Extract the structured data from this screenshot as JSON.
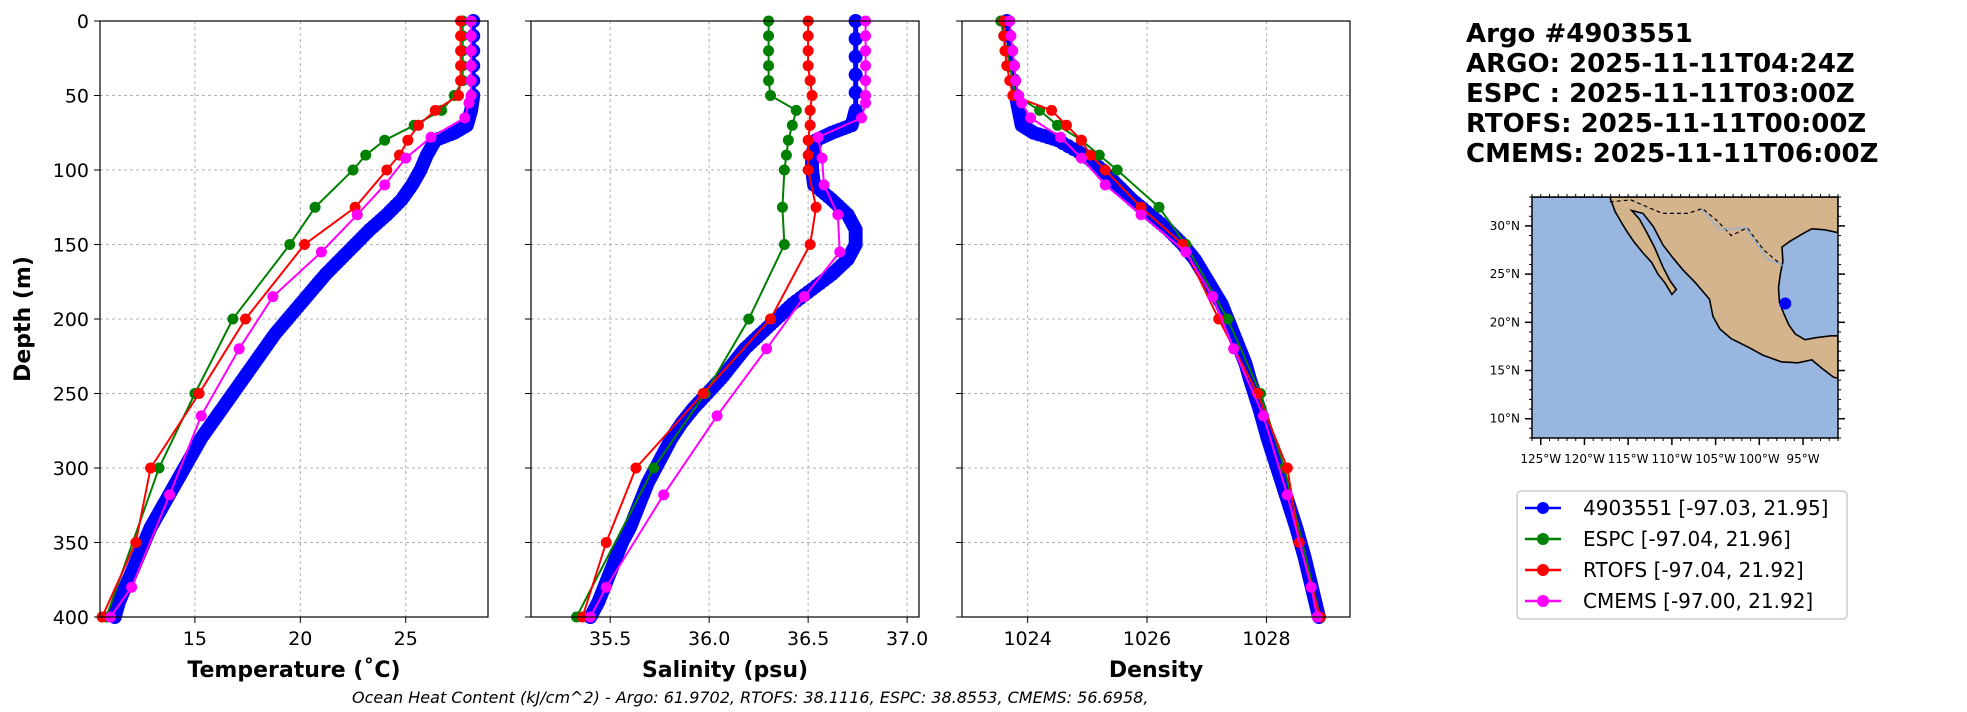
{
  "title_lines": [
    "Argo #4903551",
    "ARGO: 2025-11-11T04:24Z",
    "ESPC : 2025-11-11T03:00Z",
    "RTOFS: 2025-11-11T00:00Z",
    "CMEMS: 2025-11-11T06:00Z"
  ],
  "footer": "Ocean Heat Content (kJ/cm^2) - Argo: 61.9702,  RTOFS: 38.1116,  ESPC: 38.8553,  CMEMS: 56.6958,",
  "colors": {
    "argo": "#0000ff",
    "espc": "#008000",
    "rtofs": "#ff0000",
    "cmems": "#ff00ff"
  },
  "legend": [
    {
      "label": "4903551 [-97.03, 21.95]",
      "color": "#0000ff"
    },
    {
      "label": "ESPC [-97.04, 21.96]",
      "color": "#008000"
    },
    {
      "label": "RTOFS [-97.04, 21.92]",
      "color": "#ff0000"
    },
    {
      "label": "CMEMS [-97.00, 21.92]",
      "color": "#ff00ff"
    }
  ],
  "map": {
    "lat_ticks": [
      "30°N",
      "25°N",
      "20°N",
      "15°N",
      "10°N"
    ],
    "lat_values": [
      30,
      25,
      20,
      15,
      10
    ],
    "lon_ticks": [
      "125°W",
      "120°W",
      "115°W",
      "110°W",
      "105°W",
      "100°W",
      "95°W"
    ],
    "lon_values": [
      -125,
      -120,
      -115,
      -110,
      -105,
      -100,
      -95
    ],
    "extent": {
      "lon": [
        -126,
        -91
      ],
      "lat": [
        8,
        33
      ]
    },
    "float_position": {
      "lon": -97.03,
      "lat": 21.95
    },
    "ocean_color": "#98b6e0",
    "land_color": "#d3b48c"
  },
  "chart_data": [
    {
      "type": "line",
      "xlabel": "Temperature (˚C)",
      "ylabel": "Depth (m)",
      "xlim": [
        10.5,
        28.9
      ],
      "ylim": [
        400,
        0
      ],
      "xticks": [
        15,
        20,
        25
      ],
      "yticks": [
        0,
        50,
        100,
        150,
        200,
        250,
        300,
        350,
        400
      ],
      "grid": true,
      "series": [
        {
          "name": "ARGO",
          "color": "#0000ff",
          "dense": true,
          "depth": [
            0,
            50,
            60,
            70,
            75,
            80,
            90,
            100,
            110,
            120,
            130,
            140,
            150,
            160,
            170,
            180,
            190,
            200,
            210,
            220,
            230,
            240,
            250,
            260,
            270,
            280,
            290,
            300,
            310,
            320,
            330,
            340,
            350,
            360,
            370,
            380,
            390,
            400
          ],
          "values": [
            28.2,
            28.2,
            28.1,
            27.9,
            27.3,
            26.4,
            26.0,
            25.7,
            25.3,
            24.8,
            24.1,
            23.3,
            22.6,
            21.9,
            21.2,
            20.6,
            20.0,
            19.4,
            18.8,
            18.3,
            17.8,
            17.3,
            16.8,
            16.3,
            15.8,
            15.3,
            14.9,
            14.5,
            14.1,
            13.7,
            13.3,
            12.9,
            12.6,
            12.3,
            12.0,
            11.7,
            11.4,
            11.2
          ]
        },
        {
          "name": "ESPC",
          "color": "#008000",
          "depth": [
            0,
            10,
            20,
            30,
            40,
            50,
            60,
            70,
            80,
            90,
            100,
            125,
            150,
            200,
            250,
            300,
            400
          ],
          "values": [
            27.7,
            27.7,
            27.7,
            27.7,
            27.7,
            27.3,
            26.7,
            25.4,
            24.0,
            23.1,
            22.5,
            20.7,
            19.5,
            16.8,
            15.0,
            13.3,
            10.8
          ]
        },
        {
          "name": "RTOFS",
          "color": "#ff0000",
          "depth": [
            0,
            10,
            20,
            30,
            40,
            50,
            60,
            70,
            80,
            90,
            100,
            125,
            150,
            200,
            250,
            300,
            350,
            400
          ],
          "values": [
            27.6,
            27.6,
            27.6,
            27.6,
            27.6,
            27.5,
            26.4,
            25.6,
            25.1,
            24.7,
            24.1,
            22.6,
            20.2,
            17.4,
            15.2,
            12.9,
            12.2,
            10.6
          ]
        },
        {
          "name": "CMEMS",
          "color": "#ff00ff",
          "depth": [
            0,
            10,
            20,
            30,
            40,
            50,
            55,
            65,
            78,
            92,
            110,
            130,
            155,
            185,
            220,
            265,
            318,
            380,
            400
          ],
          "values": [
            28.1,
            28.1,
            28.1,
            28.1,
            28.1,
            28.1,
            28.0,
            27.8,
            26.2,
            25.0,
            24.0,
            22.7,
            21.0,
            18.7,
            17.1,
            15.3,
            13.8,
            12.0,
            11.0
          ]
        }
      ]
    },
    {
      "type": "line",
      "xlabel": "Salinity (psu)",
      "xlim": [
        35.1,
        37.06
      ],
      "ylim": [
        400,
        0
      ],
      "xticks": [
        35.5,
        36.0,
        36.5,
        37.0
      ],
      "xticklabels": [
        "35.5",
        "36.0",
        "36.5",
        "37.0"
      ],
      "grid": true,
      "series": [
        {
          "name": "ARGO",
          "color": "#0000ff",
          "dense": true,
          "depth": [
            0,
            60,
            70,
            75,
            80,
            90,
            100,
            110,
            120,
            130,
            140,
            150,
            160,
            170,
            180,
            190,
            200,
            210,
            220,
            230,
            240,
            250,
            260,
            270,
            280,
            290,
            300,
            310,
            320,
            330,
            340,
            350,
            360,
            370,
            380,
            390,
            400
          ],
          "values": [
            36.74,
            36.74,
            36.72,
            36.62,
            36.54,
            36.52,
            36.52,
            36.53,
            36.62,
            36.7,
            36.74,
            36.74,
            36.7,
            36.62,
            36.52,
            36.42,
            36.34,
            36.26,
            36.18,
            36.12,
            36.06,
            35.99,
            35.92,
            35.86,
            35.81,
            35.77,
            35.73,
            35.69,
            35.66,
            35.63,
            35.6,
            35.56,
            35.53,
            35.5,
            35.47,
            35.44,
            35.4
          ]
        },
        {
          "name": "ESPC",
          "color": "#008000",
          "depth": [
            0,
            10,
            20,
            30,
            40,
            50,
            60,
            70,
            80,
            90,
            100,
            125,
            150,
            200,
            250,
            300,
            400
          ],
          "values": [
            36.3,
            36.3,
            36.3,
            36.3,
            36.3,
            36.31,
            36.44,
            36.42,
            36.4,
            36.39,
            36.38,
            36.37,
            36.38,
            36.2,
            35.98,
            35.72,
            35.33
          ]
        },
        {
          "name": "RTOFS",
          "color": "#ff0000",
          "depth": [
            0,
            10,
            20,
            30,
            40,
            50,
            60,
            70,
            80,
            90,
            100,
            125,
            150,
            200,
            250,
            300,
            350,
            400
          ],
          "values": [
            36.5,
            36.5,
            36.5,
            36.5,
            36.51,
            36.52,
            36.51,
            36.51,
            36.5,
            36.5,
            36.5,
            36.54,
            36.51,
            36.31,
            35.97,
            35.63,
            35.48,
            35.36
          ]
        },
        {
          "name": "CMEMS",
          "color": "#ff00ff",
          "depth": [
            0,
            10,
            20,
            30,
            40,
            50,
            55,
            65,
            78,
            92,
            110,
            130,
            155,
            185,
            220,
            265,
            318,
            380,
            400
          ],
          "values": [
            36.79,
            36.79,
            36.79,
            36.79,
            36.79,
            36.79,
            36.79,
            36.77,
            36.55,
            36.57,
            36.58,
            36.65,
            36.66,
            36.48,
            36.29,
            36.04,
            35.77,
            35.48,
            35.4
          ]
        }
      ]
    },
    {
      "type": "line",
      "xlabel": "Density",
      "xlim": [
        1022.9,
        1029.4
      ],
      "ylim": [
        400,
        0
      ],
      "xticks": [
        1024,
        1026,
        1028
      ],
      "grid": true,
      "series": [
        {
          "name": "ARGO",
          "color": "#0000ff",
          "dense": true,
          "depth": [
            0,
            50,
            60,
            70,
            75,
            80,
            90,
            100,
            110,
            120,
            130,
            140,
            150,
            160,
            170,
            180,
            190,
            200,
            210,
            220,
            230,
            240,
            250,
            260,
            270,
            280,
            290,
            300,
            310,
            320,
            330,
            340,
            350,
            360,
            370,
            380,
            390,
            400
          ],
          "values": [
            1023.65,
            1023.8,
            1023.85,
            1023.9,
            1024.1,
            1024.5,
            1024.95,
            1025.25,
            1025.5,
            1025.75,
            1026.05,
            1026.35,
            1026.6,
            1026.8,
            1026.95,
            1027.1,
            1027.25,
            1027.35,
            1027.45,
            1027.55,
            1027.65,
            1027.72,
            1027.8,
            1027.88,
            1027.95,
            1028.02,
            1028.1,
            1028.18,
            1028.26,
            1028.34,
            1028.42,
            1028.5,
            1028.57,
            1028.64,
            1028.7,
            1028.76,
            1028.82,
            1028.88
          ]
        },
        {
          "name": "ESPC",
          "color": "#008000",
          "depth": [
            0,
            10,
            20,
            30,
            40,
            50,
            60,
            70,
            80,
            90,
            100,
            125,
            150,
            200,
            250,
            300,
            400
          ],
          "values": [
            1023.55,
            1023.6,
            1023.65,
            1023.7,
            1023.75,
            1023.8,
            1024.2,
            1024.5,
            1024.9,
            1025.2,
            1025.5,
            1026.2,
            1026.65,
            1027.35,
            1027.9,
            1028.3,
            1028.9
          ]
        },
        {
          "name": "RTOFS",
          "color": "#ff0000",
          "depth": [
            0,
            10,
            20,
            30,
            40,
            50,
            60,
            70,
            80,
            90,
            100,
            125,
            150,
            200,
            250,
            300,
            350,
            400
          ],
          "values": [
            1023.6,
            1023.6,
            1023.62,
            1023.65,
            1023.7,
            1023.75,
            1024.4,
            1024.65,
            1024.9,
            1025.05,
            1025.3,
            1025.9,
            1026.6,
            1027.2,
            1027.85,
            1028.35,
            1028.55,
            1028.9
          ]
        },
        {
          "name": "CMEMS",
          "color": "#ff00ff",
          "depth": [
            0,
            10,
            20,
            30,
            40,
            50,
            55,
            65,
            78,
            92,
            110,
            130,
            155,
            185,
            220,
            265,
            318,
            380,
            400
          ],
          "values": [
            1023.7,
            1023.72,
            1023.75,
            1023.78,
            1023.8,
            1023.85,
            1023.9,
            1024.05,
            1024.55,
            1024.9,
            1025.3,
            1025.9,
            1026.65,
            1027.1,
            1027.45,
            1027.95,
            1028.35,
            1028.75,
            1028.85
          ]
        }
      ]
    }
  ]
}
